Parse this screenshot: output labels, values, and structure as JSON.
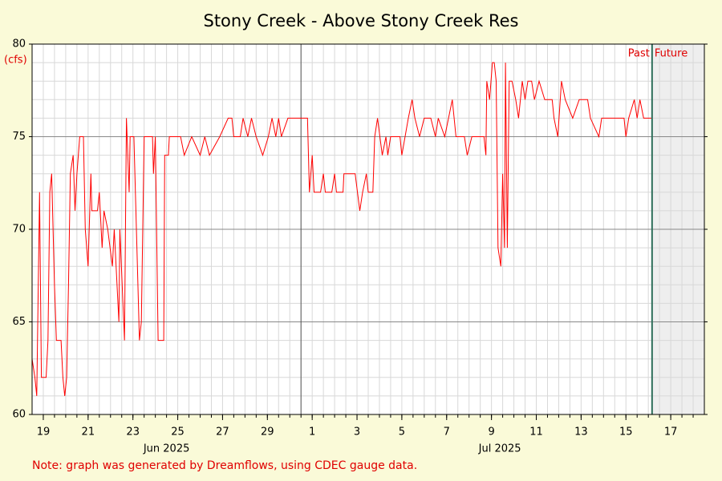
{
  "chart_data": {
    "type": "line",
    "title": "Stony Creek - Above Stony Creek Res",
    "ylabel": "(cfs)",
    "note": "Note: graph was generated by Dreamflows, using CDEC gauge data.",
    "color": "#ff0000",
    "x": [
      "2025-06-19T00:00",
      "2025-06-19T03:00",
      "2025-06-19T05:00",
      "2025-06-19T08:00",
      "2025-06-19T10:00",
      "2025-06-19T15:00",
      "2025-06-19T17:00",
      "2025-06-19T19:00",
      "2025-06-19T21:00",
      "2025-06-20T00:00",
      "2025-06-20T02:00",
      "2025-06-20T07:00",
      "2025-06-20T09:00",
      "2025-06-20T11:00",
      "2025-06-20T13:00",
      "2025-06-20T15:00",
      "2025-06-20T17:00",
      "2025-06-20T20:00",
      "2025-06-20T22:00",
      "2025-06-21T00:00",
      "2025-06-21T03:00",
      "2025-06-21T07:00",
      "2025-06-21T09:00",
      "2025-06-21T12:00",
      "2025-06-21T15:00",
      "2025-06-21T16:00",
      "2025-06-21T22:00",
      "2025-06-22T00:00",
      "2025-06-22T03:00",
      "2025-06-22T05:00",
      "2025-06-22T09:00",
      "2025-06-22T14:00",
      "2025-06-22T16:00",
      "2025-06-22T21:00",
      "2025-06-22T22:00",
      "2025-06-23T03:00",
      "2025-06-23T05:00",
      "2025-06-23T08:00",
      "2025-06-23T09:00",
      "2025-06-23T13:00",
      "2025-06-23T19:00",
      "2025-06-23T21:00",
      "2025-06-24T00:00",
      "2025-06-24T09:00",
      "2025-06-24T10:00",
      "2025-06-24T12:00",
      "2025-06-24T15:00",
      "2025-06-24T21:00",
      "2025-06-24T22:00",
      "2025-06-25T02:00",
      "2025-06-25T03:00",
      "2025-06-25T15:00",
      "2025-06-25T19:00",
      "2025-06-26T03:00",
      "2025-06-26T12:00",
      "2025-06-26T17:00",
      "2025-06-26T22:00",
      "2025-06-27T09:00",
      "2025-06-27T18:00",
      "2025-06-27T22:00",
      "2025-06-28T00:00",
      "2025-06-28T07:00",
      "2025-06-28T10:00",
      "2025-06-28T15:00",
      "2025-06-28T19:00",
      "2025-06-29T00:00",
      "2025-06-29T07:00",
      "2025-06-29T13:00",
      "2025-06-29T17:00",
      "2025-06-29T21:00",
      "2025-06-30T00:00",
      "2025-06-30T03:00",
      "2025-06-30T10:00",
      "2025-07-01T07:00",
      "2025-07-01T09:00",
      "2025-07-01T12:00",
      "2025-07-01T14:00",
      "2025-07-01T21:00",
      "2025-07-02T00:00",
      "2025-07-02T02:00",
      "2025-07-02T09:00",
      "2025-07-02T12:00",
      "2025-07-02T14:00",
      "2025-07-02T21:00",
      "2025-07-02T22:00",
      "2025-07-03T10:00",
      "2025-07-03T15:00",
      "2025-07-03T18:00",
      "2025-07-03T22:00",
      "2025-07-04T00:00",
      "2025-07-04T05:00",
      "2025-07-04T07:00",
      "2025-07-04T10:00",
      "2025-07-04T15:00",
      "2025-07-04T19:00",
      "2025-07-04T21:00",
      "2025-07-05T00:00",
      "2025-07-05T10:00",
      "2025-07-05T12:00",
      "2025-07-05T19:00",
      "2025-07-05T23:00",
      "2025-07-06T02:00",
      "2025-07-06T07:00",
      "2025-07-06T12:00",
      "2025-07-06T19:00",
      "2025-07-07T00:00",
      "2025-07-07T03:00",
      "2025-07-07T10:00",
      "2025-07-07T18:00",
      "2025-07-07T22:00",
      "2025-07-08T07:00",
      "2025-07-08T10:00",
      "2025-07-08T15:00",
      "2025-07-09T04:00",
      "2025-07-09T06:00",
      "2025-07-09T07:00",
      "2025-07-09T10:00",
      "2025-07-09T13:00",
      "2025-07-09T15:00",
      "2025-07-09T17:00",
      "2025-07-09T19:00",
      "2025-07-09T22:00",
      "2025-07-10T00:00",
      "2025-07-10T02:00",
      "2025-07-10T03:00",
      "2025-07-10T05:00",
      "2025-07-10T07:00",
      "2025-07-10T10:00",
      "2025-07-10T14:00",
      "2025-07-10T17:00",
      "2025-07-10T21:00",
      "2025-07-11T00:00",
      "2025-07-11T03:00",
      "2025-07-11T07:00",
      "2025-07-11T10:00",
      "2025-07-11T15:00",
      "2025-07-11T21:00",
      "2025-07-12T05:00",
      "2025-07-12T07:00",
      "2025-07-12T11:00",
      "2025-07-12T15:00",
      "2025-07-12T19:00",
      "2025-07-13T03:00",
      "2025-07-13T10:00",
      "2025-07-13T19:00",
      "2025-07-13T22:00",
      "2025-07-14T07:00",
      "2025-07-14T10:00",
      "2025-07-15T02:00",
      "2025-07-15T10:00",
      "2025-07-15T12:00",
      "2025-07-15T15:00",
      "2025-07-15T21:00",
      "2025-07-16T00:00",
      "2025-07-16T03:00",
      "2025-07-16T07:00",
      "2025-07-16T16:00"
    ],
    "values": [
      63,
      62,
      61,
      72,
      62,
      62,
      64,
      72,
      73,
      67,
      64,
      64,
      62,
      61,
      62,
      67,
      73,
      74,
      71,
      73,
      75,
      75,
      70,
      68,
      73,
      71,
      71,
      72,
      69,
      71,
      70,
      68,
      70,
      65,
      70,
      64,
      76,
      72,
      75,
      75,
      64,
      65,
      75,
      75,
      73,
      75,
      64,
      64,
      74,
      74,
      75,
      75,
      74,
      75,
      74,
      75,
      74,
      75,
      76,
      76,
      75,
      75,
      76,
      75,
      76,
      75,
      74,
      75,
      76,
      75,
      76,
      75,
      76,
      76,
      72,
      74,
      72,
      72,
      73,
      72,
      72,
      73,
      72,
      72,
      73,
      73,
      71,
      72,
      73,
      72,
      72,
      75,
      76,
      74,
      75,
      74,
      75,
      75,
      74,
      76,
      77,
      76,
      75,
      76,
      76,
      75,
      76,
      75,
      77,
      75,
      75,
      74,
      75,
      75,
      74,
      78,
      77,
      79,
      79,
      78,
      69,
      68,
      73,
      69,
      79,
      69,
      78,
      78,
      77,
      76,
      78,
      77,
      78,
      78,
      77,
      78,
      77,
      77,
      76,
      75,
      78,
      77,
      76,
      77,
      77,
      76,
      75,
      76,
      76,
      76,
      75,
      76,
      77,
      76,
      77,
      76,
      76
    ],
    "xlim": [
      "2025-06-19T00:00",
      "2025-07-19T00:00"
    ],
    "xticks": [
      {
        "value": "2025-06-19T12:00",
        "label": "19"
      },
      {
        "value": "2025-06-21T12:00",
        "label": "21"
      },
      {
        "value": "2025-06-23T12:00",
        "label": "23"
      },
      {
        "value": "2025-06-25T12:00",
        "label": "25"
      },
      {
        "value": "2025-06-27T12:00",
        "label": "27"
      },
      {
        "value": "2025-06-29T12:00",
        "label": "29"
      },
      {
        "value": "2025-07-01T12:00",
        "label": "1"
      },
      {
        "value": "2025-07-03T12:00",
        "label": "3"
      },
      {
        "value": "2025-07-05T12:00",
        "label": "5"
      },
      {
        "value": "2025-07-07T12:00",
        "label": "7"
      },
      {
        "value": "2025-07-09T12:00",
        "label": "9"
      },
      {
        "value": "2025-07-11T12:00",
        "label": "11"
      },
      {
        "value": "2025-07-13T12:00",
        "label": "13"
      },
      {
        "value": "2025-07-15T12:00",
        "label": "15"
      },
      {
        "value": "2025-07-17T12:00",
        "label": "17"
      }
    ],
    "month_labels": [
      {
        "value": "2025-06-25T00:00",
        "label": "Jun 2025"
      },
      {
        "value": "2025-07-09T21:00",
        "label": "Jul 2025"
      }
    ],
    "month_line": "2025-07-01T00:00",
    "now": "2025-07-16T16:00",
    "past_label": "Past",
    "future_label": "Future",
    "ylim": [
      60,
      80
    ],
    "yticks": [
      60,
      65,
      70,
      75,
      80
    ],
    "minor_grid_step": 1,
    "grid": true
  }
}
